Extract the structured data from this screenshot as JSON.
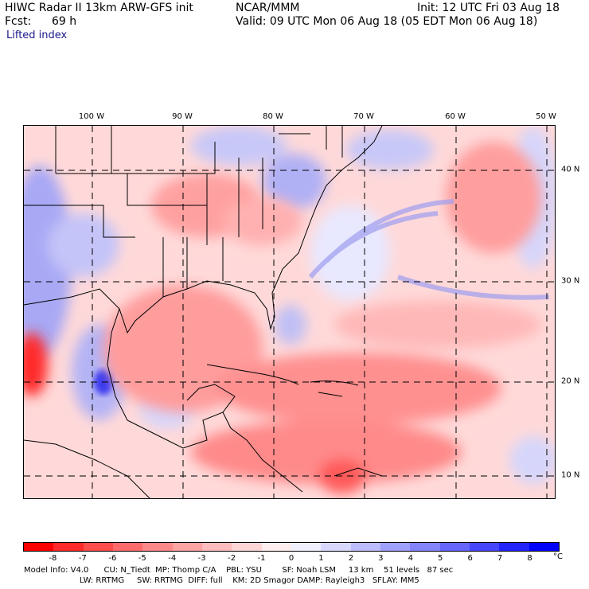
{
  "header": {
    "model_title": "HIWC Radar II 13km ARW-GFS init",
    "org": "NCAR/MMM",
    "init": "Init: 12 UTC Fri 03 Aug 18",
    "fcst_label": "Fcst:",
    "fcst_value": "69 h",
    "valid": "Valid: 09 UTC Mon 06 Aug 18 (05 EDT Mon 06 Aug 18)",
    "field": "Lifted index"
  },
  "map": {
    "lon_labels": [
      "100 W",
      "90 W",
      "80 W",
      "70 W",
      "60 W",
      "50 W"
    ],
    "lat_labels": [
      "40 N",
      "30 N",
      "20 N",
      "10 N"
    ]
  },
  "colorbar": {
    "labels": [
      "-8",
      "-7",
      "-6",
      "-5",
      "-4",
      "-3",
      "-2",
      "-1",
      "0",
      "1",
      "2",
      "3",
      "4",
      "5",
      "6",
      "7",
      "8"
    ],
    "unit": "°C",
    "colors": [
      "#ff0000",
      "#ff2a2a",
      "#ff4d4d",
      "#ff6b6b",
      "#ff8888",
      "#ffa3a3",
      "#ffbcbc",
      "#ffd6d6",
      "#ffeeee",
      "#f0f0ff",
      "#d8d8ff",
      "#bcbcff",
      "#a0a0ff",
      "#8484ff",
      "#6666ff",
      "#4646ff",
      "#2424ff",
      "#0000ff"
    ]
  },
  "info": {
    "line1": "Model Info: V4.0      CU: N_Tiedt  MP: Thomp C/A    PBL: YSU        SF: Noah LSM     13 km    51 levels   87 sec",
    "line2": "                      LW: RRTMG     SW: RRTMG  DIFF: full    KM: 2D Smagor DAMP: Rayleigh3   SFLAY: MM5"
  }
}
